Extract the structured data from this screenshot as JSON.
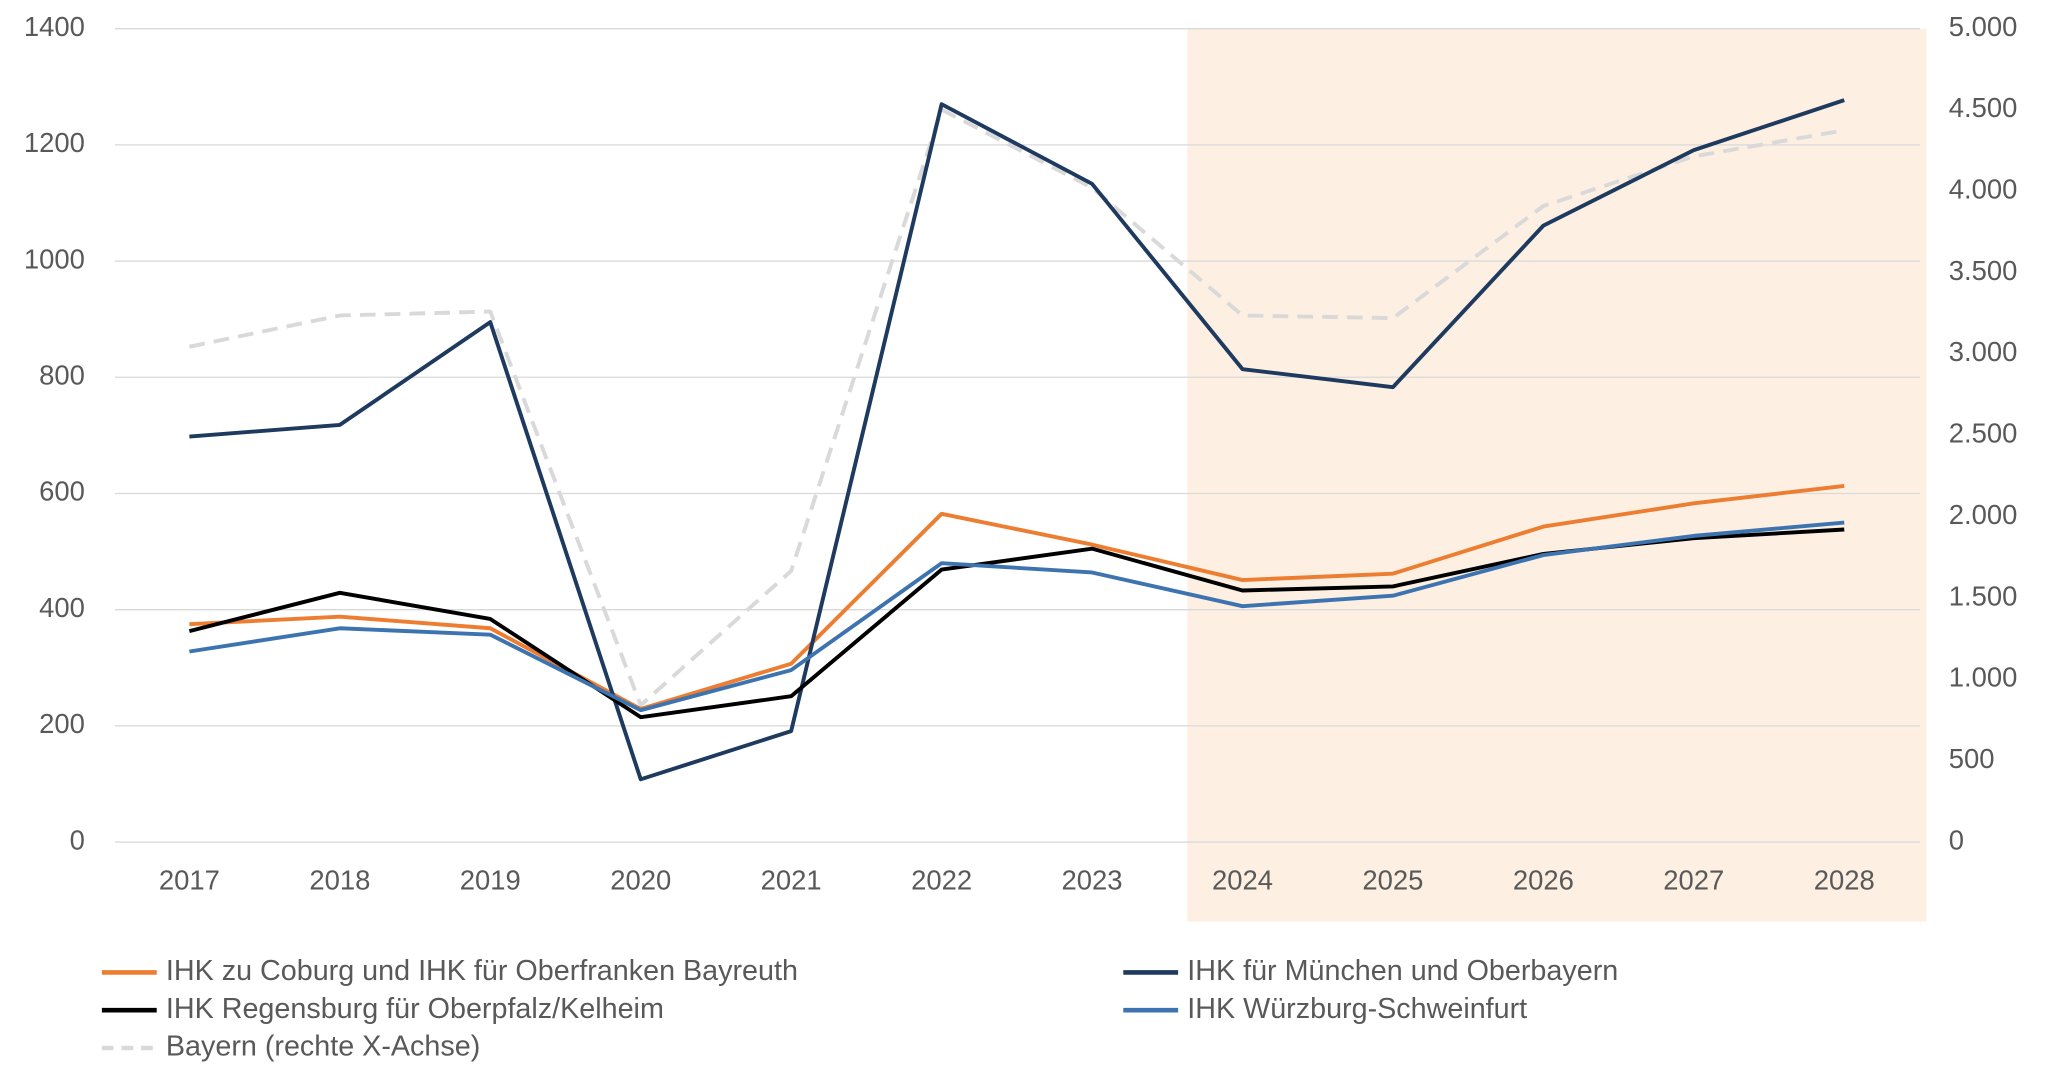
{
  "chart_data": {
    "type": "line",
    "categories": [
      "2017",
      "2018",
      "2019",
      "2020",
      "2021",
      "2022",
      "2023",
      "2024",
      "2025",
      "2026",
      "2027",
      "2028"
    ],
    "ylim": [
      0,
      1400
    ],
    "yticks": [
      0,
      200,
      400,
      600,
      800,
      1000,
      1200,
      1400
    ],
    "y2lim": [
      0,
      5000
    ],
    "y2ticks": [
      0,
      500,
      {
        "value": 1000,
        "label": "1.000"
      },
      {
        "value": 1500,
        "label": "1.500"
      },
      {
        "value": 2000,
        "label": "2.000"
      },
      {
        "value": 2500,
        "label": "2.500"
      },
      {
        "value": 3000,
        "label": "3.000"
      },
      {
        "value": 3500,
        "label": "3.500"
      },
      {
        "value": 4000,
        "label": "4.000"
      },
      {
        "value": 4500,
        "label": "4.500"
      },
      {
        "value": 5000,
        "label": "5.000"
      }
    ],
    "grid": true,
    "legend": "bottom",
    "series": [
      {
        "name": "IHK zu Coburg und IHK für Oberfranken Bayreuth",
        "color": "#ed7d31",
        "values": [
          375,
          388,
          368,
          229,
          307,
          565,
          512,
          451,
          462,
          543,
          583,
          613
        ]
      },
      {
        "name": "IHK für München und Oberbayern",
        "color": "#1f3a5f",
        "values": [
          698,
          718,
          895,
          108,
          191,
          1270,
          1133,
          814,
          783,
          1061,
          1191,
          1277
        ]
      },
      {
        "name": "IHK Regensburg für Oberpfalz/Kelheim",
        "color": "#000000",
        "values": [
          363,
          429,
          384,
          215,
          251,
          469,
          505,
          433,
          440,
          496,
          523,
          538
        ]
      },
      {
        "name": "IHK Würzburg-Schweinfurt",
        "color": "#3d74b0",
        "values": [
          328,
          368,
          357,
          227,
          296,
          480,
          464,
          406,
          424,
          494,
          527,
          550
        ]
      },
      {
        "name": "Bayern (rechte X-Achse)",
        "color": "#d9d9d9",
        "dashed": true,
        "axis": "y2",
        "values": [
          3045,
          3237,
          3261,
          841,
          1667,
          4503,
          4022,
          3237,
          3221,
          3910,
          4215,
          4375
        ]
      }
    ]
  }
}
